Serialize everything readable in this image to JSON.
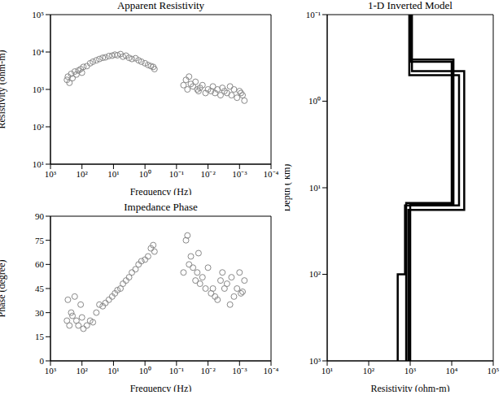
{
  "chart_data": [
    {
      "type": "scatter",
      "title": "Apparent Resistivity",
      "x_label": "Frequency (Hz)",
      "y_label": "Resistivity (ohm-m)",
      "log": true,
      "grid": false,
      "marker": "open_circle",
      "color": "#888888",
      "x": [
        300,
        280,
        250,
        220,
        200,
        170,
        150,
        130,
        110,
        100,
        90,
        70,
        55,
        45,
        35,
        28,
        22,
        18,
        14,
        11,
        9,
        7.5,
        6,
        5,
        4,
        3.2,
        2.6,
        2,
        1.6,
        1.3,
        1.0,
        0.8,
        0.65,
        0.55,
        0.5,
        0.06,
        0.05,
        0.045,
        0.04,
        0.035,
        0.03,
        0.025,
        0.022,
        0.02,
        0.018,
        0.015,
        0.012,
        0.01,
        0.008,
        0.007,
        0.006,
        0.005,
        0.004,
        0.0035,
        0.003,
        0.0025,
        0.002,
        0.0018,
        0.0015,
        0.0012,
        0.001,
        0.0009,
        0.0008,
        0.0007
      ],
      "values": [
        1800,
        2200,
        1500,
        2600,
        2000,
        3000,
        2500,
        3200,
        3500,
        2800,
        4000,
        4200,
        5000,
        5500,
        6000,
        6500,
        7000,
        7200,
        7800,
        8000,
        8500,
        8200,
        8800,
        7500,
        8000,
        7000,
        6500,
        6800,
        6000,
        5500,
        5000,
        4500,
        4200,
        4000,
        3500,
        1300,
        1800,
        1000,
        2200,
        1400,
        1200,
        1600,
        1000,
        900,
        1100,
        1300,
        800,
        1000,
        900,
        1200,
        800,
        1000,
        700,
        1100,
        900,
        800,
        1200,
        700,
        1000,
        600,
        900,
        800,
        700,
        500
      ],
      "xlim": [
        1000,
        0.0001
      ],
      "xticks": [
        {
          "value": 1000,
          "label": "10³"
        },
        {
          "value": 100,
          "label": "10²"
        },
        {
          "value": 10,
          "label": "10¹"
        },
        {
          "value": 1,
          "label": "10⁰"
        },
        {
          "value": 0.1,
          "label": "10⁻¹"
        },
        {
          "value": 0.01,
          "label": "10⁻²"
        },
        {
          "value": 0.001,
          "label": "10⁻³"
        },
        {
          "value": 0.0001,
          "label": "10⁻⁴"
        }
      ],
      "ylim": [
        10,
        100000
      ],
      "yticks": [
        {
          "value": 10,
          "label": "10¹"
        },
        {
          "value": 100,
          "label": "10²"
        },
        {
          "value": 1000,
          "label": "10³"
        },
        {
          "value": 10000,
          "label": "10⁴"
        },
        {
          "value": 100000,
          "label": "10⁵"
        }
      ]
    },
    {
      "type": "scatter",
      "title": "Impedance Phase",
      "x_label": "Frequency (Hz)",
      "y_label": "Phase (degree)",
      "log": "x",
      "grid": false,
      "marker": "open_circle",
      "color": "#888888",
      "x": [
        300,
        280,
        250,
        220,
        200,
        170,
        150,
        130,
        110,
        100,
        90,
        70,
        55,
        45,
        35,
        28,
        22,
        18,
        14,
        11,
        9,
        7.5,
        6,
        5,
        4,
        3.2,
        2.6,
        2,
        1.6,
        1.3,
        1.0,
        0.8,
        0.65,
        0.55,
        0.5,
        0.06,
        0.05,
        0.045,
        0.04,
        0.035,
        0.03,
        0.025,
        0.022,
        0.02,
        0.018,
        0.015,
        0.012,
        0.01,
        0.008,
        0.007,
        0.006,
        0.005,
        0.004,
        0.0035,
        0.003,
        0.0025,
        0.002,
        0.0018,
        0.0015,
        0.0012,
        0.001,
        0.0009,
        0.0008,
        0.0007
      ],
      "values": [
        25,
        38,
        22,
        30,
        28,
        40,
        25,
        22,
        35,
        27,
        20,
        22,
        25,
        24,
        30,
        35,
        34,
        36,
        38,
        40,
        42,
        44,
        45,
        48,
        50,
        52,
        55,
        57,
        60,
        62,
        63,
        65,
        70,
        72,
        68,
        55,
        75,
        78,
        60,
        65,
        58,
        50,
        55,
        67,
        48,
        52,
        45,
        58,
        42,
        45,
        40,
        38,
        50,
        55,
        45,
        48,
        35,
        52,
        40,
        45,
        55,
        42,
        43,
        50
      ],
      "xlim": [
        1000,
        0.0001
      ],
      "xticks": [
        {
          "value": 1000,
          "label": "10³"
        },
        {
          "value": 100,
          "label": "10²"
        },
        {
          "value": 10,
          "label": "10¹"
        },
        {
          "value": 1,
          "label": "10⁰"
        },
        {
          "value": 0.1,
          "label": "10⁻¹"
        },
        {
          "value": 0.01,
          "label": "10⁻²"
        },
        {
          "value": 0.001,
          "label": "10⁻³"
        },
        {
          "value": 0.0001,
          "label": "10⁻⁴"
        }
      ],
      "ylim": [
        0,
        90
      ],
      "yticks": [
        0,
        15,
        30,
        45,
        60,
        75,
        90
      ]
    },
    {
      "type": "line",
      "title": "1-D Inverted Model",
      "x_label": "Resistivity (ohm-m)",
      "y_label": "Depth ( km)",
      "log": true,
      "grid": false,
      "line_style": "solid",
      "series": [
        {
          "color": "#000000",
          "x": [
            1000,
            1000,
            10000,
            10000,
            800,
            800
          ],
          "values": [
            0.1,
            0.35,
            0.35,
            15,
            15,
            1000
          ]
        },
        {
          "color": "#000000",
          "x": [
            1100,
            1100,
            20000,
            20000,
            900,
            900
          ],
          "values": [
            0.1,
            0.45,
            0.45,
            18,
            18,
            1000
          ]
        },
        {
          "color": "#000000",
          "x": [
            950,
            950,
            15000,
            15000,
            750,
            750,
            500,
            500
          ],
          "values": [
            0.1,
            0.5,
            0.5,
            16,
            16,
            100,
            100,
            1000
          ]
        },
        {
          "color": "#000000",
          "x": [
            1050,
            1050,
            11000,
            11000,
            1000,
            1000
          ],
          "values": [
            0.1,
            0.33,
            0.33,
            15.5,
            15.5,
            1000
          ]
        }
      ],
      "xlim": [
        10,
        100000
      ],
      "xticks": [
        {
          "value": 10,
          "label": "10¹"
        },
        {
          "value": 100,
          "label": "10²"
        },
        {
          "value": 1000,
          "label": "10³"
        },
        {
          "value": 10000,
          "label": "10⁴"
        },
        {
          "value": 100000,
          "label": "10⁵"
        }
      ],
      "ylim": [
        1000,
        0.1
      ],
      "yticks": [
        {
          "value": 0.1,
          "label": "10⁻¹"
        },
        {
          "value": 1,
          "label": "10⁰"
        },
        {
          "value": 10,
          "label": "10¹"
        },
        {
          "value": 100,
          "label": "10²"
        },
        {
          "value": 1000,
          "label": "10³"
        }
      ]
    }
  ]
}
